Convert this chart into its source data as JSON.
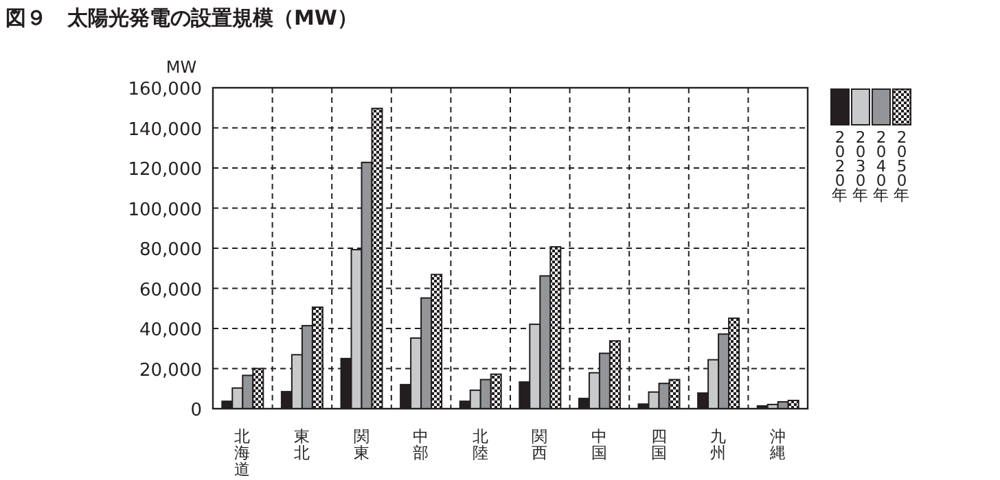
{
  "chart_data": {
    "type": "bar",
    "title": "図９　太陽光発電の設置規模（MW）",
    "ylabel": "MW",
    "categories": [
      "北海道",
      "東北",
      "関東",
      "中部",
      "北陸",
      "関西",
      "中国",
      "四国",
      "九州",
      "沖縄"
    ],
    "series": [
      {
        "name": "2020年",
        "color": "#231f20",
        "values": [
          3700,
          8500,
          25000,
          12000,
          3700,
          13300,
          5100,
          2300,
          7800,
          1400
        ]
      },
      {
        "name": "2030年",
        "color": "#c8c9ca",
        "values": [
          10300,
          26900,
          79300,
          35200,
          9200,
          42100,
          17900,
          8300,
          24400,
          2100
        ]
      },
      {
        "name": "2040年",
        "color": "#939598",
        "values": [
          16600,
          41400,
          122800,
          55200,
          14500,
          66200,
          27600,
          12600,
          37200,
          3400
        ]
      },
      {
        "name": "2050年",
        "color": "#231f20",
        "values": [
          20000,
          50600,
          149700,
          66900,
          17200,
          80700,
          33800,
          14500,
          45100,
          4100
        ]
      }
    ],
    "ylim": [
      0,
      160000
    ],
    "yticks": [
      {
        "value": 0,
        "label": "0"
      },
      {
        "value": 20000,
        "label": "20,000"
      },
      {
        "value": 40000,
        "label": "40,000"
      },
      {
        "value": 60000,
        "label": "60,000"
      },
      {
        "value": 80000,
        "label": "80,000"
      },
      {
        "value": 100000,
        "label": "100,000"
      },
      {
        "value": 120000,
        "label": "120,000"
      },
      {
        "value": 140000,
        "label": "140,000"
      },
      {
        "value": 160000,
        "label": "160,000"
      }
    ],
    "grid": true,
    "legend": "right"
  }
}
